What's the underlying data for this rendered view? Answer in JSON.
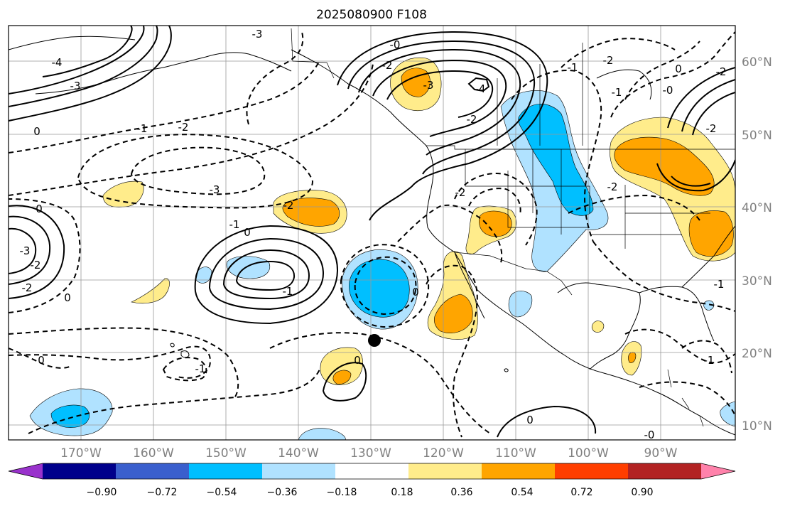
{
  "title": "2025080900 F108",
  "map": {
    "lon_labels": [
      "170°W",
      "160°W",
      "150°W",
      "140°W",
      "130°W",
      "120°W",
      "110°W",
      "100°W",
      "90°W"
    ],
    "lat_labels": [
      "60°N",
      "50°N",
      "40°N",
      "30°N",
      "20°N",
      "10°N"
    ],
    "contour_labels": [
      "-3",
      "-4",
      "-3",
      "0",
      "-1",
      "-2",
      "-3",
      "0",
      "-2",
      "-3",
      "-2",
      "0",
      "-1",
      "-2",
      "-1",
      "0",
      "-1",
      "0",
      "0",
      "-0",
      "-2",
      "-3",
      "-4",
      "-2",
      "-1",
      "-2",
      "-1",
      "-2",
      "-2",
      "-0",
      "0",
      "0",
      "-2",
      "-2",
      "-1",
      "-1",
      "-0",
      "0"
    ],
    "marker": "storm-center-dot"
  },
  "colorbar": {
    "tick_labels": [
      "−0.90",
      "−0.72",
      "−0.54",
      "−0.36",
      "−0.18",
      "0.18",
      "0.36",
      "0.54",
      "0.72",
      "0.90"
    ],
    "colors": [
      "#9932cc",
      "#00008b",
      "#3a5fcd",
      "#00bfff",
      "#b0e2ff",
      "#ffffff",
      "#ffec8b",
      "#ffa500",
      "#ff3e00",
      "#b22222",
      "#ff82ab"
    ]
  }
}
